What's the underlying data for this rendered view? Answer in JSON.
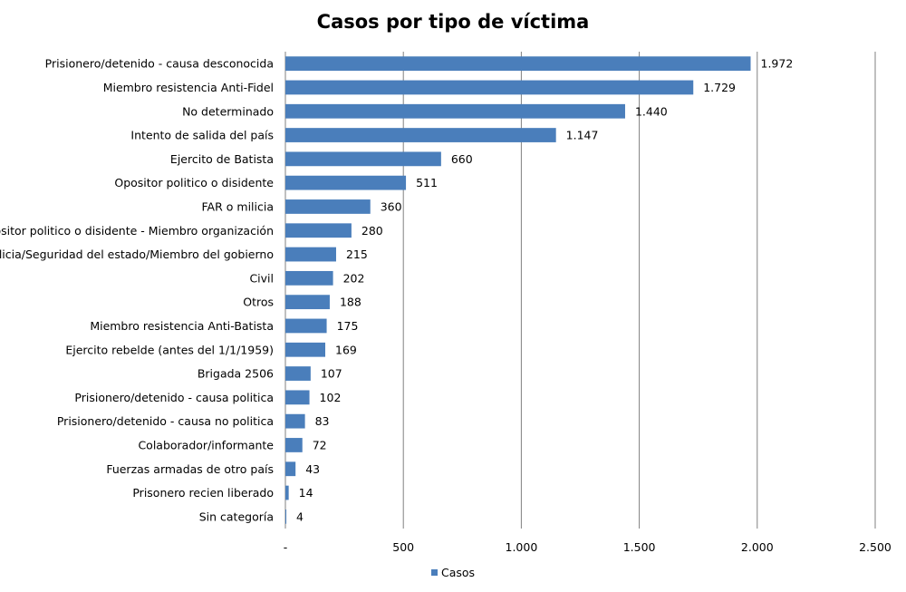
{
  "chart_data": {
    "type": "bar",
    "orientation": "horizontal",
    "title": "Casos por tipo de víctima",
    "categories": [
      "Prisionero/detenido - causa desconocida",
      "Miembro resistencia Anti-Fidel",
      "No determinado",
      "Intento de salida del país",
      "Ejercito de Batista",
      "Opositor politico o disidente",
      "FAR o milicia",
      "Opositor politico o disidente - Miembro organización",
      "Policia/Seguridad del estado/Miembro del gobierno",
      "Civil",
      "Otros",
      "Miembro resistencia Anti-Batista",
      "Ejercito rebelde (antes del  1/1/1959)",
      "Brigada 2506",
      "Prisionero/detenido - causa politica",
      "Prisionero/detenido - causa no politica",
      "Colaborador/informante",
      "Fuerzas armadas de otro país",
      "Prisonero recien liberado",
      "Sin categoría"
    ],
    "series": [
      {
        "name": "Casos",
        "values": [
          1972,
          1729,
          1440,
          1147,
          660,
          511,
          360,
          280,
          215,
          202,
          188,
          175,
          169,
          107,
          102,
          83,
          72,
          43,
          14,
          4
        ],
        "labels": [
          "1.972",
          "1.729",
          "1.440",
          "1.147",
          "660",
          "511",
          "360",
          "280",
          "215",
          "202",
          "188",
          "175",
          "169",
          "107",
          "102",
          "83",
          "72",
          "43",
          "14",
          "4"
        ]
      }
    ],
    "xlim": [
      0,
      2500
    ],
    "x_ticks": [
      0,
      500,
      1000,
      1500,
      2000,
      2500
    ],
    "x_tick_labels": [
      "-",
      "500",
      "1.000",
      "1.500",
      "2.000",
      "2.500"
    ],
    "grid": "vertical",
    "legend": "bottom",
    "bar_color": "#4a7ebb",
    "grid_color": "#808080"
  }
}
